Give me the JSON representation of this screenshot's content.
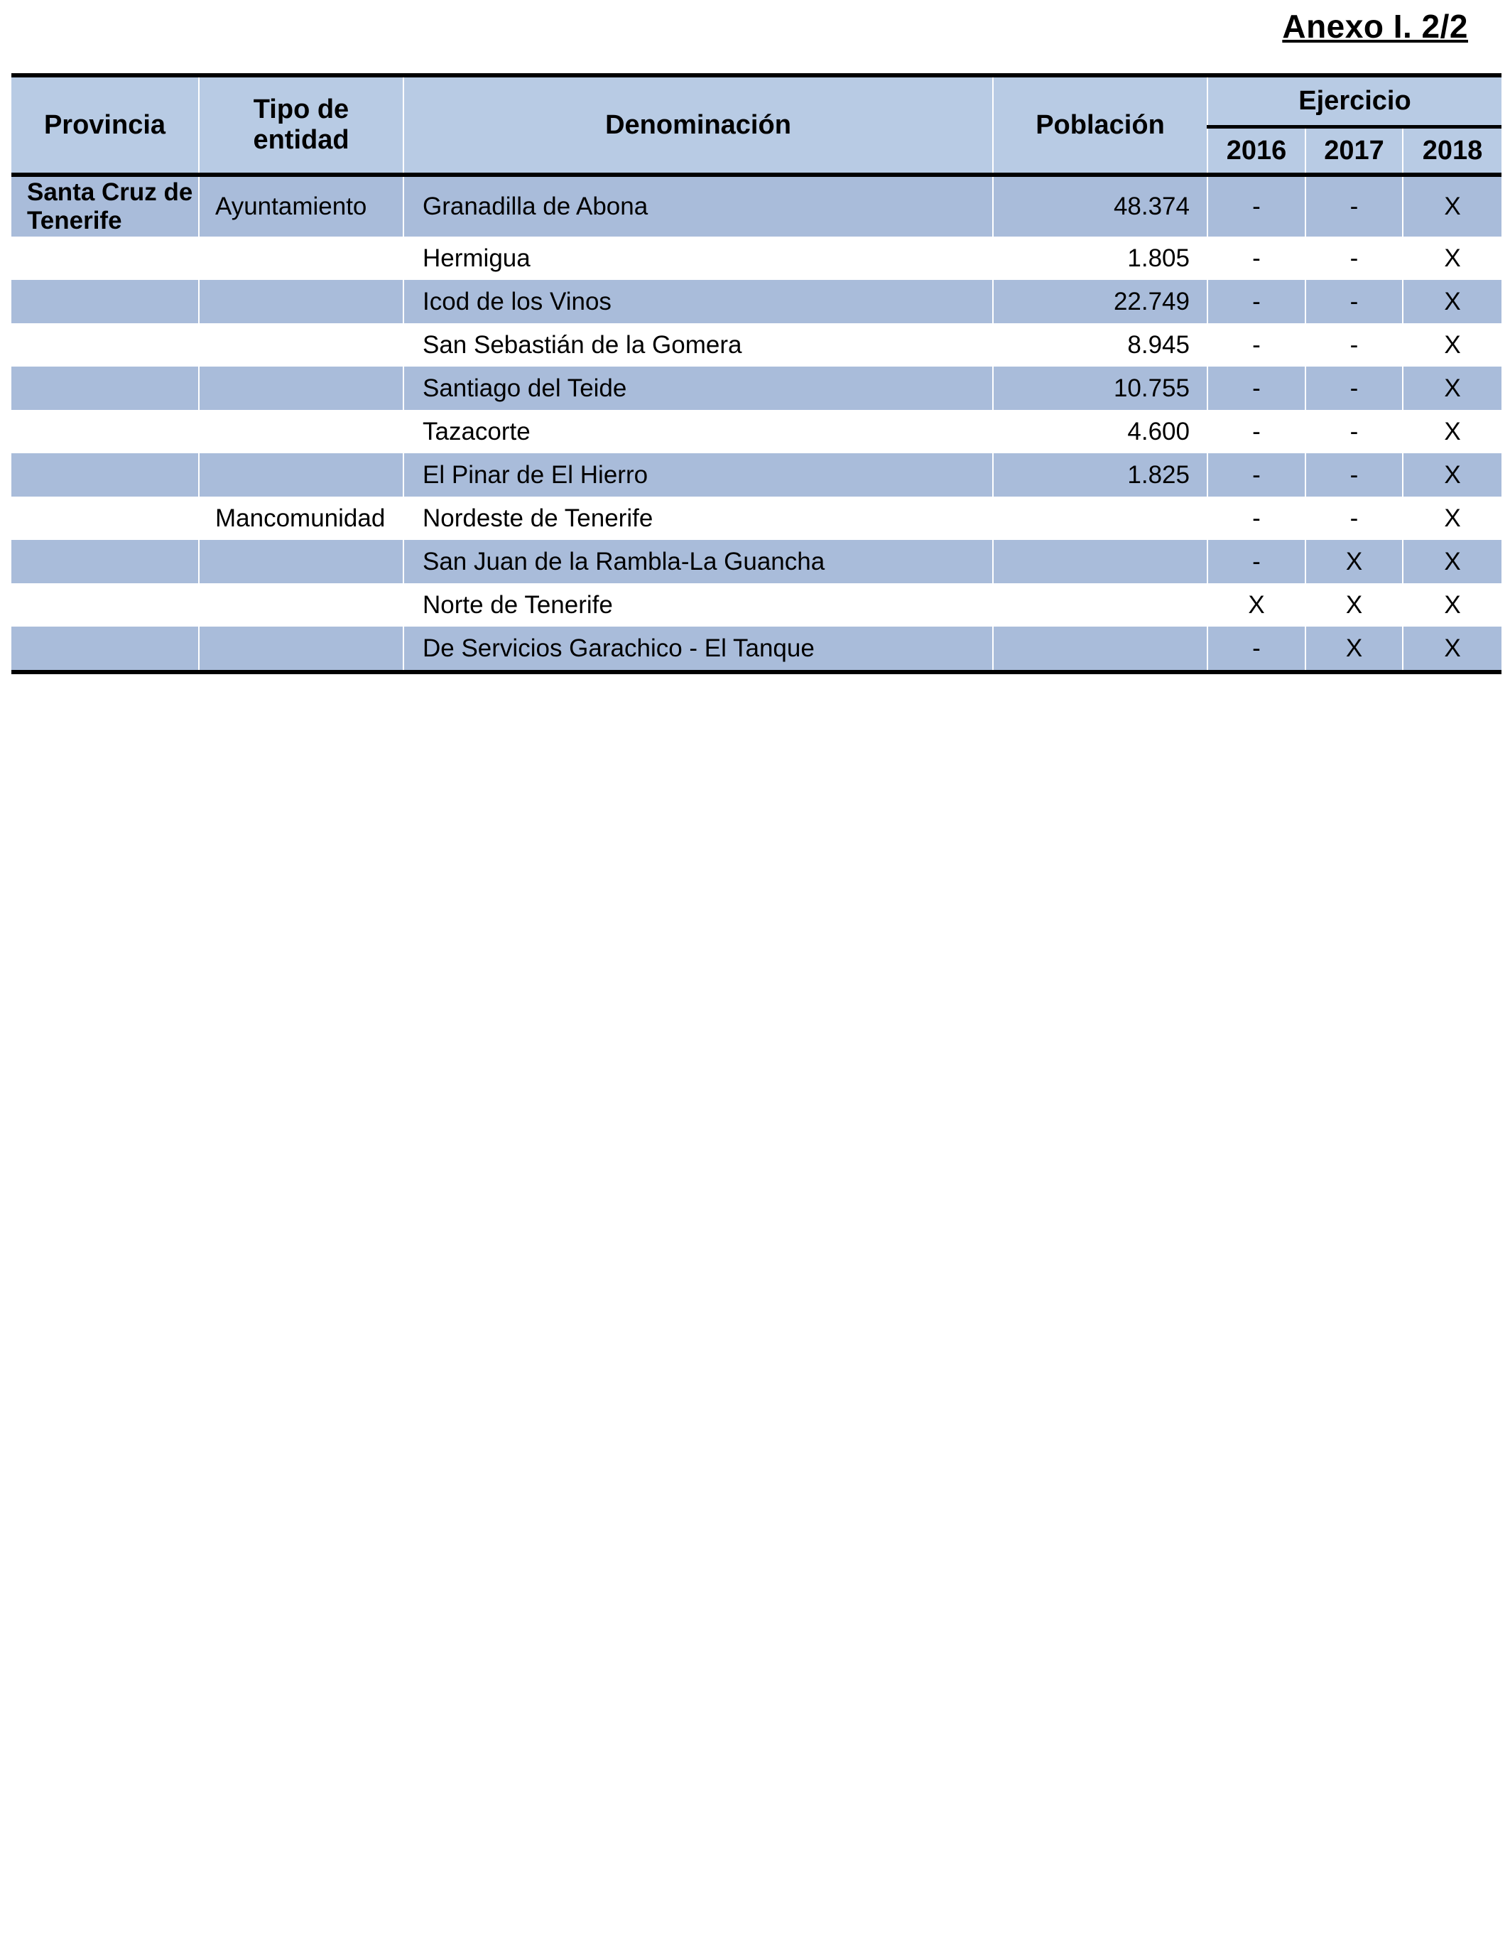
{
  "annex_title": "Anexo I. 2/2",
  "headers": {
    "provincia": "Provincia",
    "tipo_line1": "Tipo de",
    "tipo_line2": "entidad",
    "denominacion": "Denominación",
    "poblacion": "Población",
    "ejercicio": "Ejercicio",
    "years": [
      "2016",
      "2017",
      "2018"
    ]
  },
  "rows": [
    {
      "provincia_line1": "Santa Cruz de",
      "provincia_line2": "Tenerife",
      "tipo": "Ayuntamiento",
      "denominacion": "Granadilla de Abona",
      "poblacion": "48.374",
      "y2016": "-",
      "y2017": "-",
      "y2018": "X"
    },
    {
      "provincia_line1": "",
      "provincia_line2": "",
      "tipo": "",
      "denominacion": "Hermigua",
      "poblacion": "1.805",
      "y2016": "-",
      "y2017": "-",
      "y2018": "X"
    },
    {
      "provincia_line1": "",
      "provincia_line2": "",
      "tipo": "",
      "denominacion": "Icod de los Vinos",
      "poblacion": "22.749",
      "y2016": "-",
      "y2017": "-",
      "y2018": "X"
    },
    {
      "provincia_line1": "",
      "provincia_line2": "",
      "tipo": "",
      "denominacion": "San Sebastián de la Gomera",
      "poblacion": "8.945",
      "y2016": "-",
      "y2017": "-",
      "y2018": "X"
    },
    {
      "provincia_line1": "",
      "provincia_line2": "",
      "tipo": "",
      "denominacion": "Santiago del Teide",
      "poblacion": "10.755",
      "y2016": "-",
      "y2017": "-",
      "y2018": "X"
    },
    {
      "provincia_line1": "",
      "provincia_line2": "",
      "tipo": "",
      "denominacion": "Tazacorte",
      "poblacion": "4.600",
      "y2016": "-",
      "y2017": "-",
      "y2018": "X"
    },
    {
      "provincia_line1": "",
      "provincia_line2": "",
      "tipo": "",
      "denominacion": "El Pinar de El Hierro",
      "poblacion": "1.825",
      "y2016": "-",
      "y2017": "-",
      "y2018": "X"
    },
    {
      "provincia_line1": "",
      "provincia_line2": "",
      "tipo": "Mancomunidad",
      "denominacion": "Nordeste de Tenerife",
      "poblacion": "",
      "y2016": "-",
      "y2017": "-",
      "y2018": "X"
    },
    {
      "provincia_line1": "",
      "provincia_line2": "",
      "tipo": "",
      "denominacion": "San Juan de la Rambla-La Guancha",
      "poblacion": "",
      "y2016": "-",
      "y2017": "X",
      "y2018": "X"
    },
    {
      "provincia_line1": "",
      "provincia_line2": "",
      "tipo": "",
      "denominacion": "Norte de Tenerife",
      "poblacion": "",
      "y2016": "X",
      "y2017": "X",
      "y2018": "X"
    },
    {
      "provincia_line1": "",
      "provincia_line2": "",
      "tipo": "",
      "denominacion": "De Servicios Garachico - El Tanque",
      "poblacion": "",
      "y2016": "-",
      "y2017": "X",
      "y2018": "X"
    }
  ]
}
